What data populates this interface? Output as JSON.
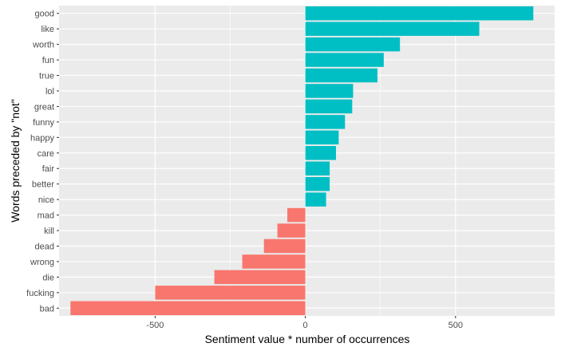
{
  "chart_data": {
    "type": "bar",
    "orientation": "horizontal",
    "xlabel": "Sentiment value * number of occurrences",
    "ylabel": "Words preceded by \"not\"",
    "xlim": [
      -820,
      830
    ],
    "xticks": [
      -500,
      0,
      500
    ],
    "xtick_labels": [
      "-500",
      "0",
      "500"
    ],
    "grid": true,
    "legend": "none",
    "categories": [
      "good",
      "like",
      "worth",
      "fun",
      "true",
      "lol",
      "great",
      "funny",
      "happy",
      "care",
      "fair",
      "better",
      "nice",
      "mad",
      "kill",
      "dead",
      "wrong",
      "die",
      "fucking",
      "bad"
    ],
    "values": [
      759,
      579,
      315,
      261,
      240,
      159,
      156,
      132,
      111,
      102,
      81,
      81,
      69,
      -60,
      -93,
      -138,
      -210,
      -303,
      -500,
      -782
    ],
    "colors": {
      "positive": "#00bfc4",
      "negative": "#f8766d",
      "panel": "#ebebeb",
      "grid": "#ffffff"
    }
  }
}
